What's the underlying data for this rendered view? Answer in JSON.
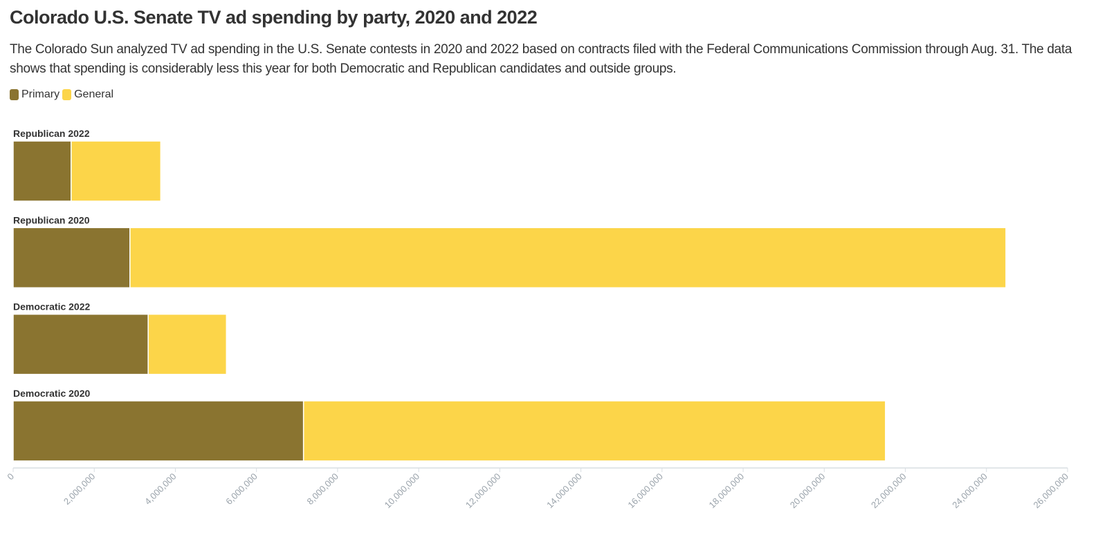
{
  "title": "Colorado U.S. Senate TV ad spending by party, 2020 and 2022",
  "subtitle": "The Colorado Sun analyzed TV ad spending in the U.S. Senate contests in 2020 and 2022 based on contracts filed with the Federal Communications Commission through Aug. 31. The data shows that spending is considerably less this year for both Democratic and Republican candidates and outside groups.",
  "colors": {
    "primary": "#8a7430",
    "general": "#fcd549",
    "axis": "#d8dde2",
    "tick_label": "#9aa3ab",
    "text": "#333333"
  },
  "chart_data": {
    "type": "bar",
    "orientation": "horizontal",
    "stacked": true,
    "categories": [
      "Republican 2022",
      "Republican 2020",
      "Democratic 2022",
      "Democratic 2020"
    ],
    "series": [
      {
        "name": "Primary",
        "values": [
          1430000,
          2880000,
          3330000,
          7160000
        ]
      },
      {
        "name": "General",
        "values": [
          2210000,
          21600000,
          1930000,
          14350000
        ]
      }
    ],
    "xlim": [
      0,
      26000000
    ],
    "xticks": [
      0,
      2000000,
      4000000,
      6000000,
      8000000,
      10000000,
      12000000,
      14000000,
      16000000,
      18000000,
      20000000,
      22000000,
      24000000,
      26000000
    ],
    "xtick_labels": [
      "0",
      "2,000,000",
      "4,000,000",
      "6,000,000",
      "8,000,000",
      "10,000,000",
      "12,000,000",
      "14,000,000",
      "16,000,000",
      "18,000,000",
      "20,000,000",
      "22,000,000",
      "24,000,000",
      "26,000,000"
    ],
    "legend_position": "top-left",
    "grid": false
  }
}
